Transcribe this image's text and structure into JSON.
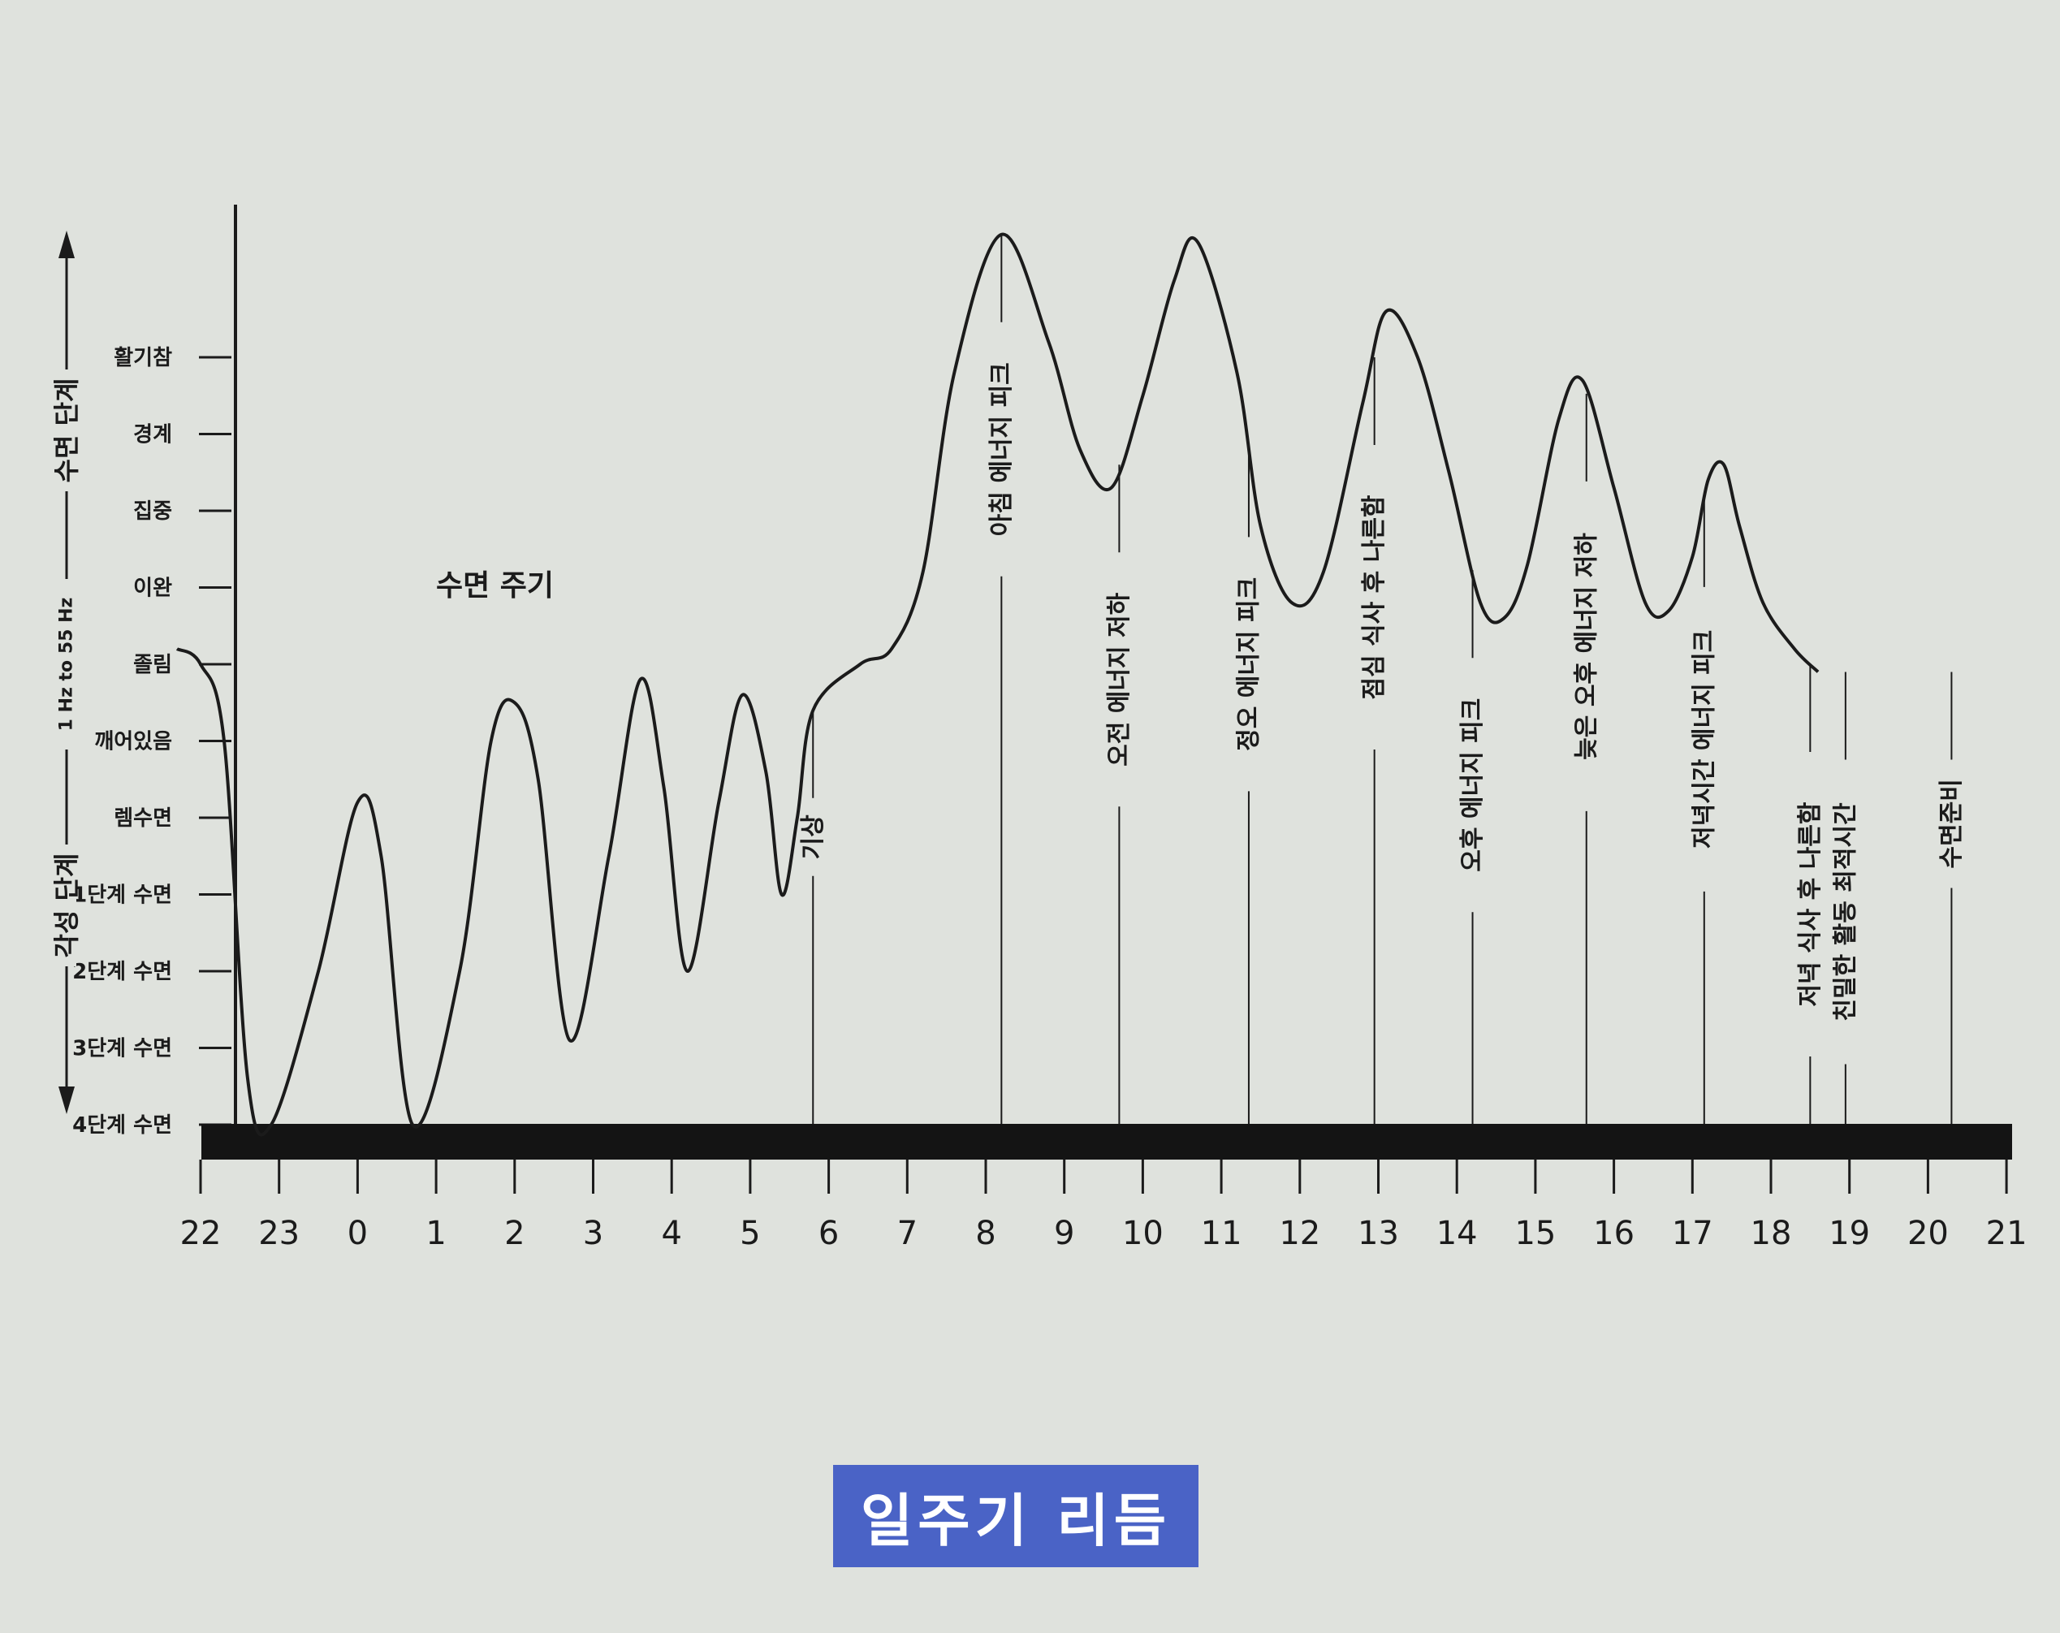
{
  "chart_data": {
    "type": "line",
    "title": "일주기 리듬",
    "annotation_title": "수면 주기",
    "axis_label_top": "수면 단계",
    "axis_label_mid": "1 Hz to 55 Hz",
    "axis_label_bottom": "각성 단계",
    "y_levels": [
      "4단계 수면",
      "3단계 수면",
      "2단계 수면",
      "1단계 수면",
      "렘수면",
      "깨어있음",
      "졸림",
      "이완",
      "집중",
      "경계",
      "활기참"
    ],
    "x_ticks": [
      "22",
      "23",
      "0",
      "1",
      "2",
      "3",
      "4",
      "5",
      "6",
      "7",
      "8",
      "9",
      "10",
      "11",
      "12",
      "13",
      "14",
      "15",
      "16",
      "17",
      "18",
      "19",
      "20",
      "21"
    ],
    "x_unit": "hours since 22:00 (tick index)",
    "y_unit": "level index: 0 = 4단계 수면 … 10 = 활기참",
    "ylim": [
      0,
      12
    ],
    "points": [
      [
        -0.3,
        6.2
      ],
      [
        0.0,
        6.0
      ],
      [
        0.3,
        5.0
      ],
      [
        0.6,
        0.6
      ],
      [
        0.9,
        0.0
      ],
      [
        1.5,
        2.0
      ],
      [
        2.0,
        4.2
      ],
      [
        2.3,
        3.5
      ],
      [
        2.7,
        0.0
      ],
      [
        3.3,
        2.0
      ],
      [
        3.7,
        5.0
      ],
      [
        4.0,
        5.5
      ],
      [
        4.3,
        4.5
      ],
      [
        4.7,
        1.1
      ],
      [
        5.2,
        3.5
      ],
      [
        5.6,
        5.8
      ],
      [
        5.9,
        4.4
      ],
      [
        6.2,
        2.0
      ],
      [
        6.6,
        4.2
      ],
      [
        6.9,
        5.6
      ],
      [
        7.2,
        4.6
      ],
      [
        7.4,
        3.0
      ],
      [
        7.6,
        4.0
      ],
      [
        7.8,
        5.4
      ],
      [
        8.4,
        6.0
      ],
      [
        8.8,
        6.2
      ],
      [
        9.2,
        7.2
      ],
      [
        9.6,
        9.8
      ],
      [
        10.2,
        11.6
      ],
      [
        10.8,
        10.2
      ],
      [
        11.2,
        8.8
      ],
      [
        11.6,
        8.3
      ],
      [
        12.0,
        9.5
      ],
      [
        12.4,
        11.0
      ],
      [
        12.7,
        11.5
      ],
      [
        13.2,
        9.8
      ],
      [
        13.5,
        7.8
      ],
      [
        13.9,
        6.8
      ],
      [
        14.3,
        7.2
      ],
      [
        14.8,
        9.4
      ],
      [
        15.1,
        10.6
      ],
      [
        15.5,
        10.0
      ],
      [
        15.9,
        8.5
      ],
      [
        16.3,
        6.8
      ],
      [
        16.6,
        6.6
      ],
      [
        16.9,
        7.3
      ],
      [
        17.3,
        9.2
      ],
      [
        17.6,
        9.7
      ],
      [
        18.0,
        8.3
      ],
      [
        18.4,
        6.8
      ],
      [
        18.7,
        6.7
      ],
      [
        19.0,
        7.4
      ],
      [
        19.2,
        8.4
      ],
      [
        19.4,
        8.6
      ],
      [
        19.6,
        7.8
      ],
      [
        19.9,
        6.8
      ],
      [
        20.3,
        6.2
      ],
      [
        20.6,
        5.9
      ]
    ],
    "annotations": [
      {
        "label": "기상",
        "x": 7.8
      },
      {
        "label": "아침 에너지 피크",
        "x": 10.2
      },
      {
        "label": "오전 에너지 저하",
        "x": 11.7
      },
      {
        "label": "정오 에너지 피크",
        "x": 13.35
      },
      {
        "label": "점심 식사 후 나른함",
        "x": 14.95
      },
      {
        "label": "오후 에너지 피크",
        "x": 16.2
      },
      {
        "label": "늦은 오후 에너지 저하",
        "x": 17.65
      },
      {
        "label": "저녁시간 에너지 피크",
        "x": 19.15
      },
      {
        "label": "저녁 식사 후 나른함",
        "x": 20.5
      },
      {
        "label": "친밀한 활동 최적시간",
        "x": 20.95
      },
      {
        "label": "수면준비",
        "x": 22.3
      }
    ],
    "grid": false,
    "legend": "none"
  }
}
